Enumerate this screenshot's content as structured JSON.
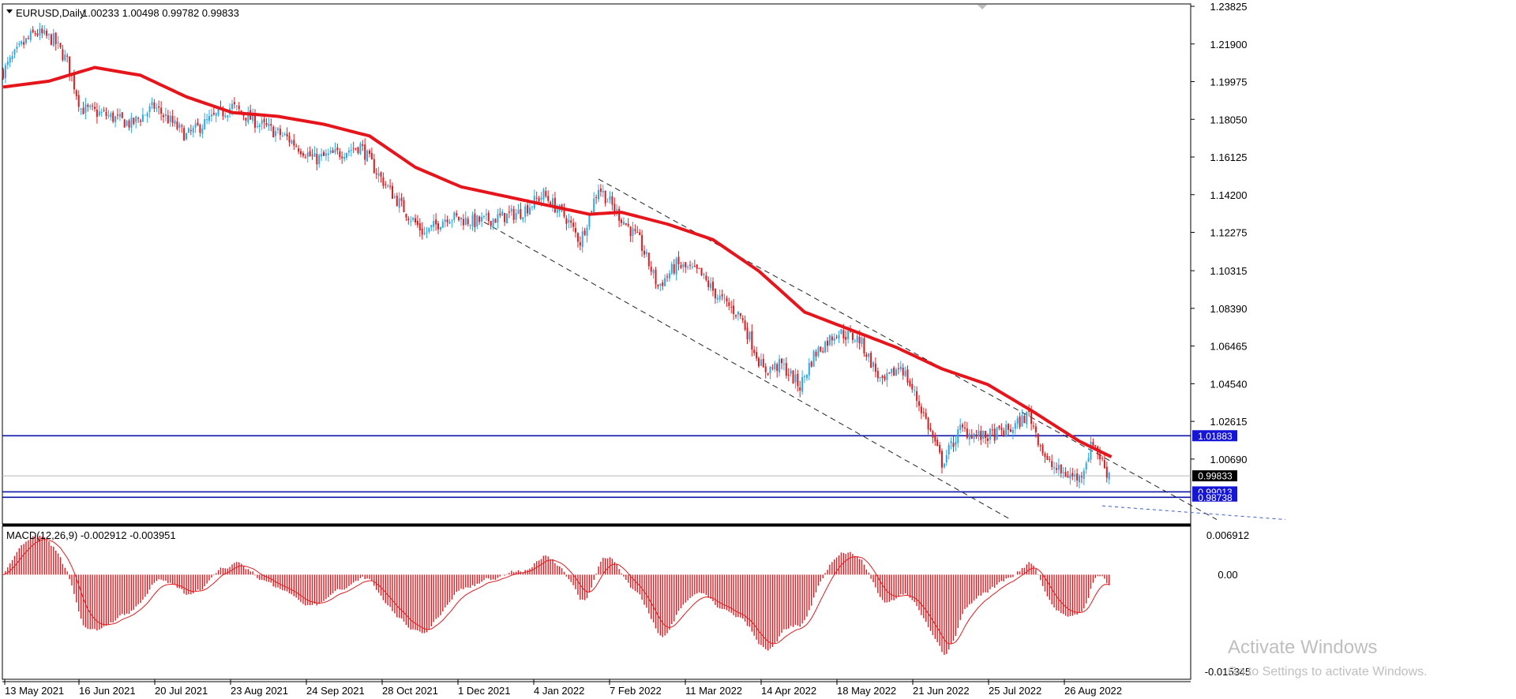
{
  "header": {
    "symbol_label": "EURUSD,Daily",
    "ohlc": "1.00233 1.00498 0.99782 0.99833",
    "macd_label": "MACD(12,26,9) -0.002912 -0.003951"
  },
  "price_axis": [
    "1.23825",
    "1.21900",
    "1.19975",
    "1.18050",
    "1.16125",
    "1.14200",
    "1.12275",
    "1.10315",
    "1.08390",
    "1.06465",
    "1.04540",
    "1.02615",
    "1.00690"
  ],
  "macd_axis": [
    "0.006912",
    "0.00",
    "-0.015345"
  ],
  "date_axis": [
    "13 May 2021",
    "16 Jun 2021",
    "20 Jul 2021",
    "23 Aug 2021",
    "24 Sep 2021",
    "28 Oct 2021",
    "1 Dec 2021",
    "4 Jan 2022",
    "7 Feb 2022",
    "11 Mar 2022",
    "14 Apr 2022",
    "18 May 2022",
    "21 Jun 2022",
    "25 Jul 2022",
    "26 Aug 2022"
  ],
  "price_tags": {
    "upper_line": "1.01883",
    "current": "0.99833",
    "lower_line1": "0.99013",
    "lower_line2": "0.98738"
  },
  "watermark": {
    "title": "Activate Windows",
    "subtitle": "Go to Settings to activate Windows."
  },
  "colors": {
    "bull": "#29a9e6",
    "bear": "#e0191d",
    "ma": "#e6141b",
    "hline": "#0b15a8",
    "macd_hist": "#e21a1f"
  },
  "chart_data": {
    "type": "candlestick",
    "y_range_price": [
      0.975,
      1.2383
    ],
    "y_range_macd": [
      -0.0153,
      0.0069
    ],
    "series_close_path": [
      [
        0,
        1.205
      ],
      [
        8,
        1.218
      ],
      [
        14,
        1.225
      ],
      [
        22,
        1.221
      ],
      [
        28,
        1.21
      ],
      [
        34,
        1.186
      ],
      [
        44,
        1.183
      ],
      [
        56,
        1.178
      ],
      [
        66,
        1.187
      ],
      [
        80,
        1.172
      ],
      [
        90,
        1.18
      ],
      [
        100,
        1.187
      ],
      [
        112,
        1.178
      ],
      [
        124,
        1.171
      ],
      [
        136,
        1.16
      ],
      [
        146,
        1.163
      ],
      [
        156,
        1.167
      ],
      [
        164,
        1.152
      ],
      [
        176,
        1.133
      ],
      [
        184,
        1.122
      ],
      [
        194,
        1.131
      ],
      [
        206,
        1.128
      ],
      [
        216,
        1.13
      ],
      [
        226,
        1.133
      ],
      [
        236,
        1.142
      ],
      [
        246,
        1.13
      ],
      [
        252,
        1.118
      ],
      [
        260,
        1.146
      ],
      [
        268,
        1.133
      ],
      [
        278,
        1.118
      ],
      [
        286,
        1.095
      ],
      [
        294,
        1.106
      ],
      [
        304,
        1.102
      ],
      [
        312,
        1.09
      ],
      [
        322,
        1.08
      ],
      [
        332,
        1.052
      ],
      [
        340,
        1.055
      ],
      [
        348,
        1.044
      ],
      [
        354,
        1.06
      ],
      [
        364,
        1.072
      ],
      [
        374,
        1.068
      ],
      [
        384,
        1.045
      ],
      [
        392,
        1.055
      ],
      [
        402,
        1.03
      ],
      [
        410,
        1.005
      ],
      [
        418,
        1.022
      ],
      [
        428,
        1.018
      ],
      [
        440,
        1.022
      ],
      [
        448,
        1.03
      ],
      [
        456,
        1.005
      ],
      [
        462,
        1.0
      ],
      [
        470,
        0.997
      ],
      [
        476,
        1.016
      ],
      [
        482,
        1.0
      ]
    ],
    "ma_path": [
      [
        0,
        1.197
      ],
      [
        20,
        1.2
      ],
      [
        40,
        1.207
      ],
      [
        60,
        1.203
      ],
      [
        80,
        1.192
      ],
      [
        100,
        1.184
      ],
      [
        120,
        1.182
      ],
      [
        140,
        1.178
      ],
      [
        160,
        1.172
      ],
      [
        180,
        1.156
      ],
      [
        200,
        1.146
      ],
      [
        220,
        1.141
      ],
      [
        240,
        1.136
      ],
      [
        256,
        1.132
      ],
      [
        270,
        1.133
      ],
      [
        290,
        1.127
      ],
      [
        310,
        1.119
      ],
      [
        330,
        1.103
      ],
      [
        350,
        1.082
      ],
      [
        370,
        1.073
      ],
      [
        390,
        1.064
      ],
      [
        410,
        1.053
      ],
      [
        430,
        1.045
      ],
      [
        450,
        1.031
      ],
      [
        470,
        1.016
      ],
      [
        484,
        1.008
      ]
    ],
    "channel_upper": [
      [
        260,
        1.15
      ],
      [
        530,
        0.976
      ]
    ],
    "channel_lower": [
      [
        210,
        1.128
      ],
      [
        440,
        0.976
      ]
    ],
    "hlines": [
      1.01883,
      0.99833,
      0.99013,
      0.98738
    ]
  }
}
